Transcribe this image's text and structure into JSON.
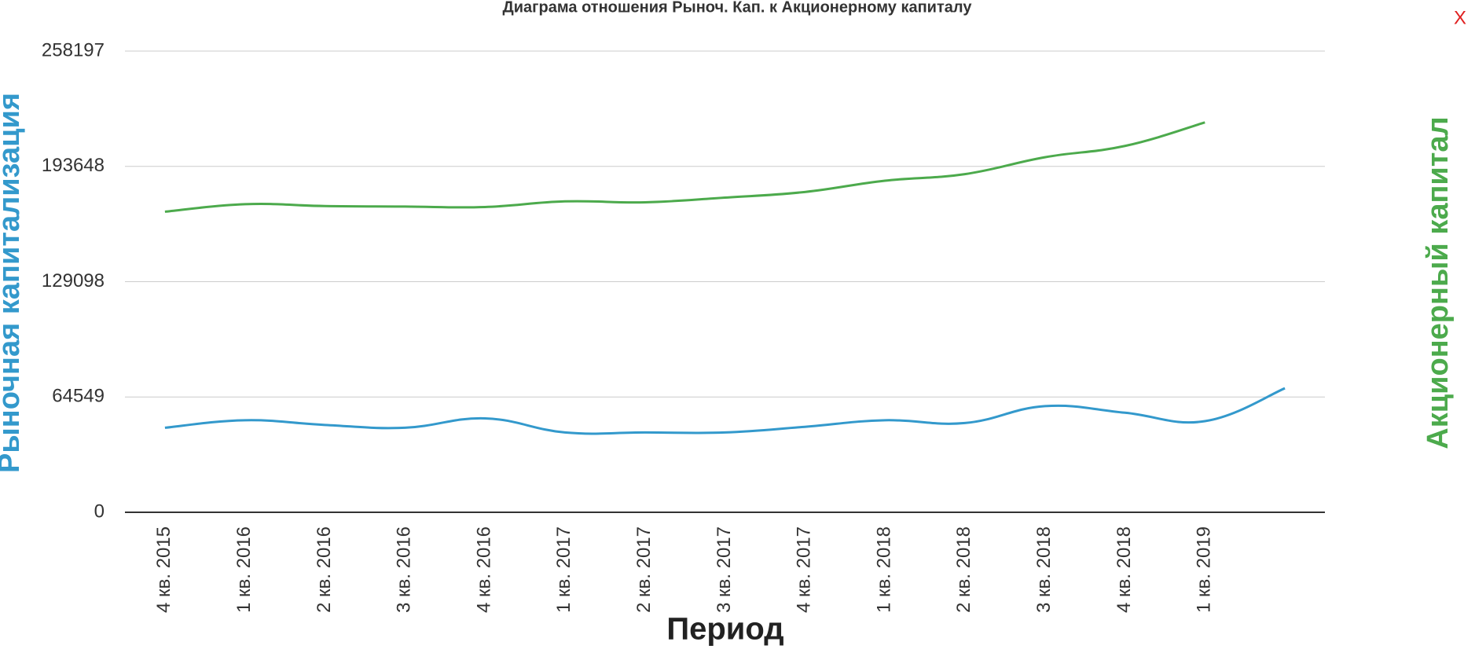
{
  "chart_data": {
    "type": "line",
    "title": "Диаграма отношения Рыноч. Кап. к Акционерному капиталу",
    "ylabel": "Рыночная капитализация",
    "y2label": "Акционерный капитал",
    "xlabel": "Период",
    "close_label": "X",
    "categories": [
      "4 кв. 2015",
      "1 кв. 2016",
      "2 кв. 2016",
      "3 кв. 2016",
      "4 кв. 2016",
      "1 кв. 2017",
      "2 кв. 2017",
      "3 кв. 2017",
      "4 кв. 2017",
      "1 кв. 2018",
      "2 кв. 2018",
      "3 кв. 2018",
      "4 кв. 2018",
      "1 кв. 2019",
      null
    ],
    "series": [
      {
        "name": "Рыночная капитализация",
        "color": "#3399cc",
        "values": [
          47327,
          51534,
          48905,
          47327,
          52586,
          44698,
          44698,
          44698,
          47853,
          51534,
          49957,
          59422,
          55741,
          51008,
          69413
        ]
      },
      {
        "name": "Акционерный капитал",
        "color": "#4caa4c",
        "values": [
          168275,
          172482,
          171430,
          171167,
          170904,
          174060,
          173534,
          176163,
          179318,
          185628,
          189309,
          198775,
          205085,
          218231,
          null
        ]
      }
    ],
    "ylim": [
      0,
      258197
    ],
    "yticks": [
      0,
      64549,
      129098,
      193648,
      258197
    ],
    "grid": true
  }
}
